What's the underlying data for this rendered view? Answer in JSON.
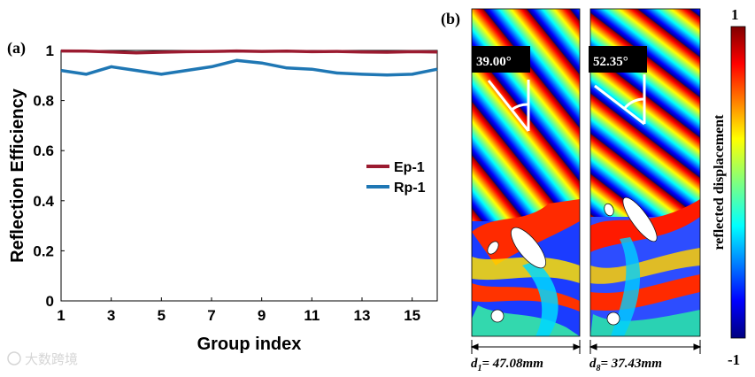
{
  "panel_a_label": "(a)",
  "panel_b_label": "(b)",
  "chart_data": {
    "type": "line",
    "xlabel": "Group index",
    "ylabel": "Reflection Efficiency",
    "xlim": [
      1,
      16
    ],
    "ylim": [
      0,
      1
    ],
    "xticks": [
      1,
      3,
      5,
      7,
      9,
      11,
      13,
      15
    ],
    "yticks": [
      0,
      0.2,
      0.4,
      0.6,
      0.8,
      1
    ],
    "ytick_labels": [
      "0",
      "0.2",
      "0.4",
      "0.6",
      "0.8",
      "1"
    ],
    "legend_position": "right",
    "x": [
      1,
      2,
      3,
      4,
      5,
      6,
      7,
      8,
      9,
      10,
      11,
      12,
      13,
      14,
      15,
      16
    ],
    "series": [
      {
        "name": "Ep-1",
        "color": "#9b1b30",
        "values": [
          0.998,
          0.997,
          0.994,
          0.99,
          0.993,
          0.995,
          0.996,
          0.998,
          0.996,
          0.997,
          0.995,
          0.996,
          0.994,
          0.993,
          0.995,
          0.994
        ]
      },
      {
        "name": "Rp-1",
        "color": "#1f77b4",
        "values": [
          0.92,
          0.905,
          0.935,
          0.92,
          0.905,
          0.92,
          0.935,
          0.96,
          0.95,
          0.93,
          0.925,
          0.91,
          0.905,
          0.902,
          0.905,
          0.925
        ]
      }
    ]
  },
  "simulation": {
    "left_angle": "39.00°",
    "right_angle": "52.35°",
    "left_dim_prefix": "d",
    "left_dim_sub": "1",
    "left_dim_value": "= 47.08mm",
    "right_dim_prefix": "d",
    "right_dim_sub": "8",
    "right_dim_value": "= 37.43mm",
    "left_angle_deg": 39.0,
    "right_angle_deg": 52.35
  },
  "colorbar": {
    "label": "reflected displacement",
    "max_label": "1",
    "min_label": "-1",
    "max_value": 1,
    "min_value": -1
  },
  "watermark": "大数跨境"
}
